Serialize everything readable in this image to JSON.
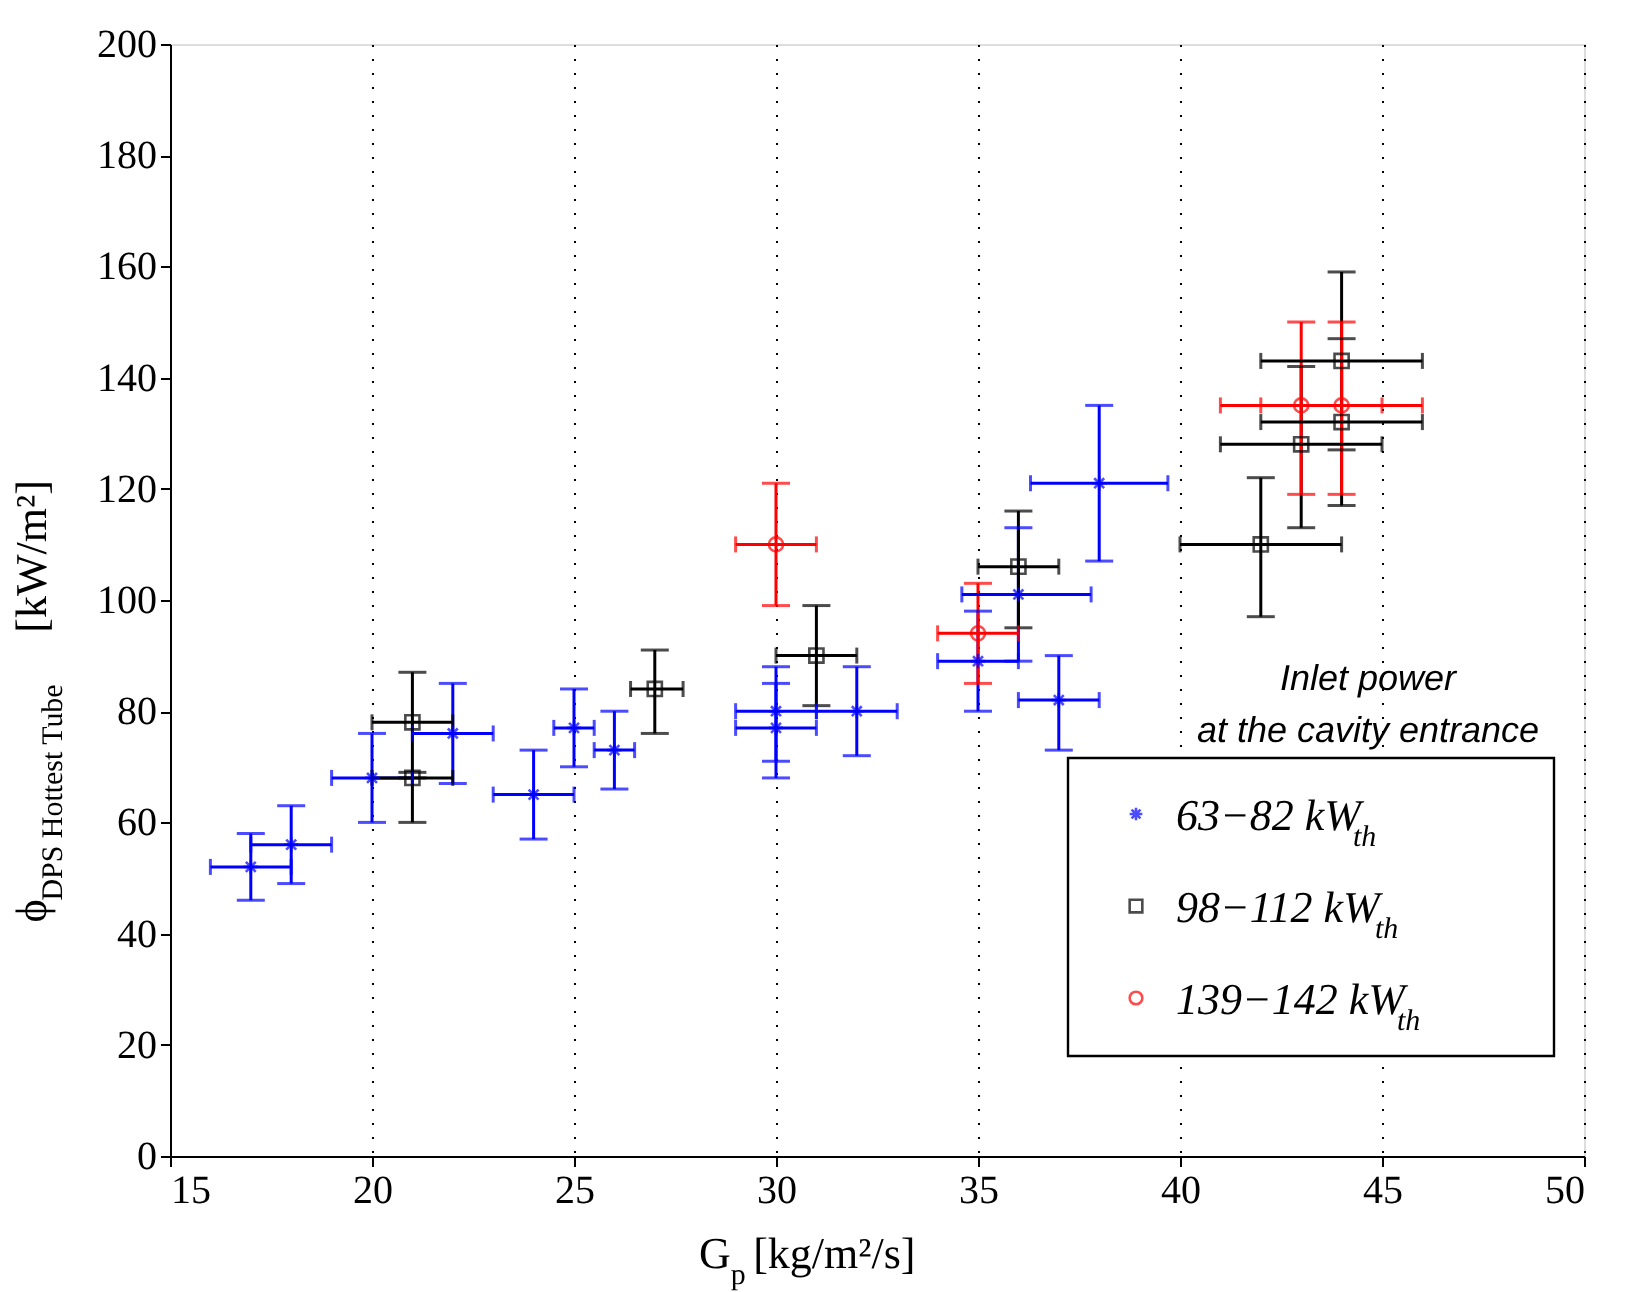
{
  "chart_data": {
    "type": "scatter",
    "xlabel": "G$_{p}$  [kg/m²/s]",
    "ylabel": "ϕ$_{DPS Hottest Tube}$ [kW/m²]",
    "legend_title": "Inlet power\nat the cavity entrance",
    "legend": "bottom right",
    "grid": "x",
    "xlim": [
      15,
      50
    ],
    "xticks": [
      15,
      20,
      25,
      30,
      35,
      40,
      45,
      50
    ],
    "ylim": [
      0,
      200
    ],
    "yticks": [
      0,
      20,
      40,
      60,
      80,
      100,
      120,
      140,
      160,
      180,
      200
    ],
    "series": [
      {
        "name": "63−82 kW$_{th}$",
        "color": "#0000ff",
        "marker": "cross",
        "x": [
          17,
          18,
          20,
          22,
          24,
          25,
          26,
          30,
          30,
          32,
          35,
          36,
          37,
          38
        ],
        "values": [
          52,
          56,
          68,
          76,
          65,
          77,
          73,
          80,
          77,
          80,
          89,
          101,
          82,
          121
        ],
        "errors": [
          [
            46,
            58
          ],
          [
            49,
            63
          ],
          [
            60,
            76
          ],
          [
            67,
            85
          ],
          [
            57,
            73
          ],
          [
            70,
            84
          ],
          [
            66,
            80
          ],
          [
            71,
            88
          ],
          [
            68,
            85
          ],
          [
            72,
            88
          ],
          [
            80,
            98
          ],
          [
            89,
            113
          ],
          [
            73,
            90
          ],
          [
            107,
            135
          ]
        ],
        "xerrors": [
          [
            16,
            18
          ],
          [
            17,
            19
          ],
          [
            19,
            21
          ],
          [
            21,
            23
          ],
          [
            23,
            25
          ],
          [
            24.5,
            25.5
          ],
          [
            25.5,
            26.5
          ],
          [
            29,
            31
          ],
          [
            29,
            31
          ],
          [
            31,
            33
          ],
          [
            34,
            36
          ],
          [
            34.6,
            37.8
          ],
          [
            36,
            38
          ],
          [
            36.3,
            39.7
          ]
        ]
      },
      {
        "name": "98−112 kW$_{th}$",
        "color": "#000000",
        "marker": "square",
        "x": [
          21,
          21,
          27,
          31,
          36,
          42,
          43,
          44,
          44
        ],
        "values": [
          78,
          68,
          84,
          90,
          106,
          110,
          128,
          132,
          143
        ],
        "errors": [
          [
            68,
            87
          ],
          [
            60,
            69
          ],
          [
            76,
            91
          ],
          [
            81,
            99
          ],
          [
            95,
            116
          ],
          [
            97,
            122
          ],
          [
            113,
            142
          ],
          [
            117,
            147
          ],
          [
            127,
            159
          ]
        ],
        "xerrors": [
          [
            20,
            22
          ],
          [
            20,
            22
          ],
          [
            26.4,
            27.7
          ],
          [
            30,
            32
          ],
          [
            35,
            37
          ],
          [
            40,
            44
          ],
          [
            41,
            45
          ],
          [
            42,
            46
          ],
          [
            42,
            46
          ]
        ]
      },
      {
        "name": "139−142 kW$_{th}$",
        "color": "#ff0000",
        "marker": "circle",
        "x": [
          30,
          35,
          43,
          44
        ],
        "values": [
          110,
          94,
          135,
          135
        ],
        "errors": [
          [
            99,
            121
          ],
          [
            85,
            103
          ],
          [
            119,
            150
          ],
          [
            119,
            150
          ]
        ],
        "xerrors": [
          [
            29,
            31
          ],
          [
            34,
            36
          ],
          [
            41,
            45
          ],
          [
            42,
            46
          ]
        ]
      }
    ]
  }
}
